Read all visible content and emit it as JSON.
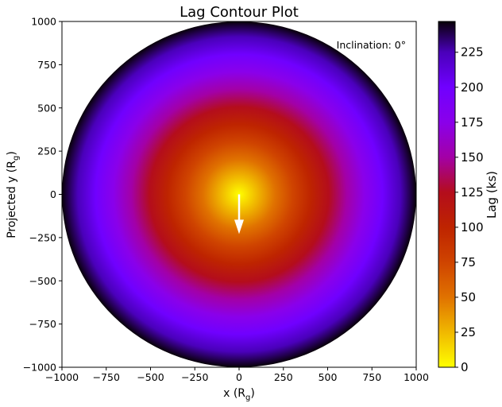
{
  "chart_data": {
    "type": "heatmap",
    "title": "Lag Contour Plot",
    "xlabel": "x (R",
    "xlabel_sub": "g",
    "xlabel_end": ")",
    "ylabel": "Projected y (R",
    "ylabel_sub": "g",
    "ylabel_end": ")",
    "xlim": [
      -1000,
      1000
    ],
    "ylim": [
      -1000,
      1000
    ],
    "xticks": [
      -1000,
      -750,
      -500,
      -250,
      0,
      250,
      500,
      750,
      1000
    ],
    "yticks": [
      -1000,
      -750,
      -500,
      -250,
      0,
      250,
      500,
      750,
      1000
    ],
    "xtick_labels": [
      "−1000",
      "−750",
      "−500",
      "−250",
      "0",
      "250",
      "500",
      "750",
      "1000"
    ],
    "ytick_labels": [
      "−1000",
      "−750",
      "−500",
      "−250",
      "0",
      "250",
      "500",
      "750",
      "1000"
    ],
    "disk": {
      "center": [
        0,
        0
      ],
      "outer_radius": 1000,
      "lag_at_center": 0,
      "lag_at_outer_edge": 247
    },
    "colormap": "gnuplot",
    "colormap_stops": [
      {
        "value": 0,
        "color": "#ffff00"
      },
      {
        "value": 25,
        "color": "#f0b800"
      },
      {
        "value": 50,
        "color": "#e07200"
      },
      {
        "value": 75,
        "color": "#cf4400"
      },
      {
        "value": 100,
        "color": "#be2400"
      },
      {
        "value": 125,
        "color": "#b40d1c"
      },
      {
        "value": 150,
        "color": "#a300a6"
      },
      {
        "value": 175,
        "color": "#8a00ea"
      },
      {
        "value": 200,
        "color": "#7000ff"
      },
      {
        "value": 225,
        "color": "#4a00ba"
      },
      {
        "value": 247,
        "color": "#080008"
      }
    ],
    "arrow": {
      "x_start": 0,
      "y_start": 0,
      "x_end": 0,
      "y_end": -220,
      "color": "#ffffff"
    },
    "annotation": "Inclination: 0°",
    "colorbar": {
      "label": "Lag (ks)",
      "min": 0,
      "max": 247,
      "ticks": [
        0,
        25,
        50,
        75,
        100,
        125,
        150,
        175,
        200,
        225
      ],
      "tick_labels": [
        "0",
        "25",
        "50",
        "75",
        "100",
        "125",
        "150",
        "175",
        "200",
        "225"
      ]
    },
    "grid": false
  }
}
